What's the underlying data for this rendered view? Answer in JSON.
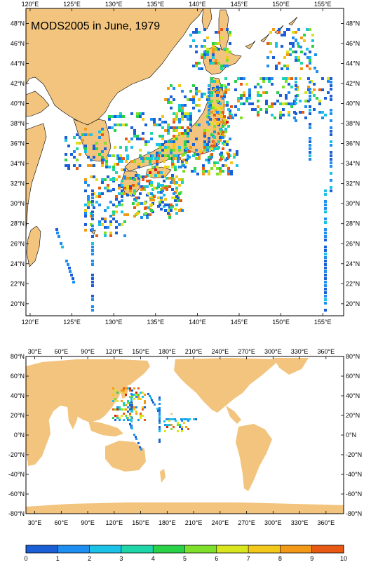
{
  "map_top": {
    "title": "MODS2005 in June, 1979",
    "lon_labels": [
      "120°E",
      "125°E",
      "130°E",
      "135°E",
      "140°E",
      "145°E",
      "150°E",
      "155°E"
    ],
    "lat_labels": [
      "48°N",
      "46°N",
      "44°N",
      "42°N",
      "40°N",
      "38°N",
      "36°N",
      "34°N",
      "32°N",
      "30°N",
      "28°N",
      "26°N",
      "24°N",
      "22°N",
      "20°N"
    ],
    "lon_range": [
      119.5,
      157.5
    ],
    "lat_range": [
      18.8,
      49.5
    ]
  },
  "map_bottom": {
    "lon_labels": [
      "30°E",
      "60°E",
      "90°E",
      "120°E",
      "150°E",
      "180°E",
      "210°E",
      "240°E",
      "270°E",
      "300°E",
      "330°E",
      "360°E"
    ],
    "lat_labels": [
      "80°N",
      "60°N",
      "40°N",
      "20°N",
      "0°N",
      "-20°N",
      "-40°N",
      "-60°N",
      "-80°N"
    ],
    "lon_range": [
      20,
      380
    ],
    "lat_range": [
      -80,
      80
    ]
  },
  "colorbar": {
    "labels": [
      "0",
      "1",
      "2",
      "3",
      "4",
      "5",
      "6",
      "7",
      "8",
      "9",
      "10"
    ],
    "colors": [
      "#1a5fd6",
      "#1e8ff0",
      "#19c2e6",
      "#1fd6a8",
      "#2ad24a",
      "#7ee02a",
      "#d9e61e",
      "#f2c81a",
      "#f29a18",
      "#e85a14",
      "#d81a10"
    ]
  },
  "colors": {
    "land": "#f2c47e",
    "ocean": "#ffffff"
  }
}
